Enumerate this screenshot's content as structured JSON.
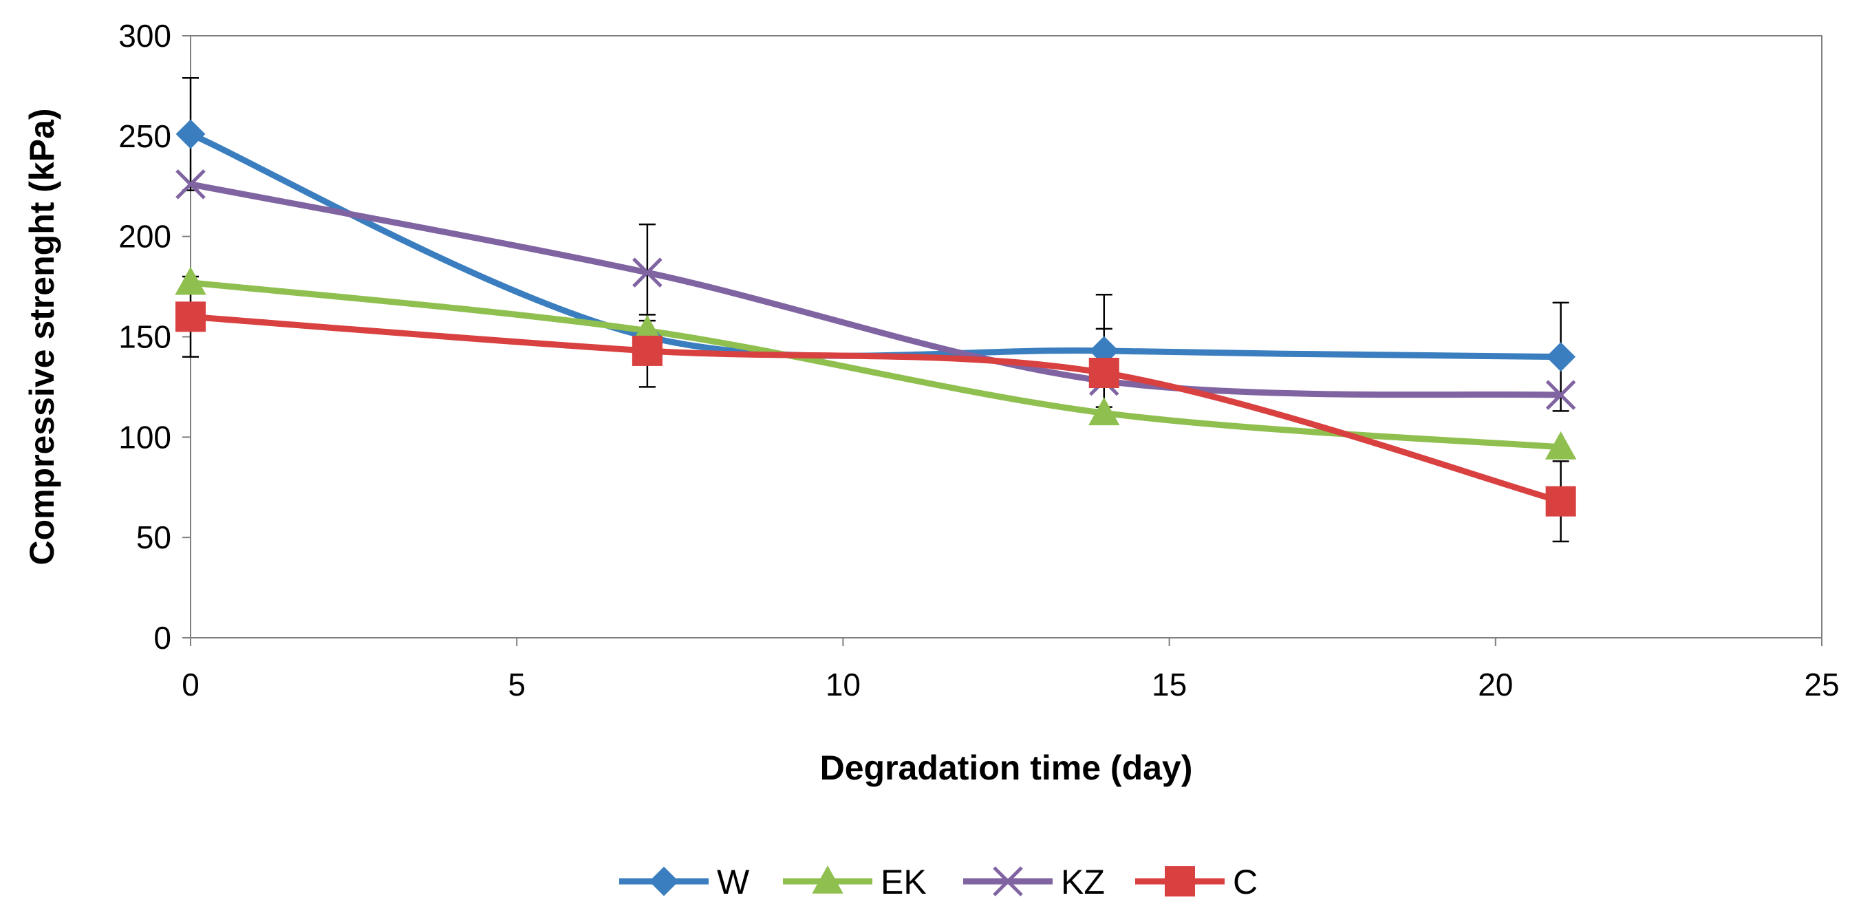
{
  "chart_data": {
    "type": "line",
    "title": "",
    "xlabel": "Degradation time (day)",
    "ylabel": "Compressive strenght (kPa)",
    "xlim": [
      0,
      25
    ],
    "ylim": [
      0,
      300
    ],
    "xticks": [
      0,
      5,
      10,
      15,
      20,
      25
    ],
    "yticks": [
      0,
      50,
      100,
      150,
      200,
      250,
      300
    ],
    "grid": false,
    "legend_position": "bottom",
    "x": [
      0,
      7,
      14,
      21
    ],
    "series": [
      {
        "name": "W",
        "marker": "diamond",
        "color": "#3a7ebf",
        "values": [
          251,
          150,
          143,
          140
        ],
        "errors": [
          28,
          0,
          28,
          27
        ]
      },
      {
        "name": "EK",
        "marker": "triangle",
        "color": "#8fc04f",
        "values": [
          177,
          153,
          112,
          95
        ],
        "errors": [
          0,
          0,
          0,
          0
        ]
      },
      {
        "name": "KZ",
        "marker": "x",
        "color": "#8064a2",
        "values": [
          226,
          182,
          128,
          121
        ],
        "errors": [
          0,
          24,
          0,
          0
        ]
      },
      {
        "name": "C",
        "marker": "square",
        "color": "#d94040",
        "values": [
          160,
          143,
          132,
          68
        ],
        "errors": [
          20,
          18,
          22,
          20
        ]
      }
    ]
  }
}
